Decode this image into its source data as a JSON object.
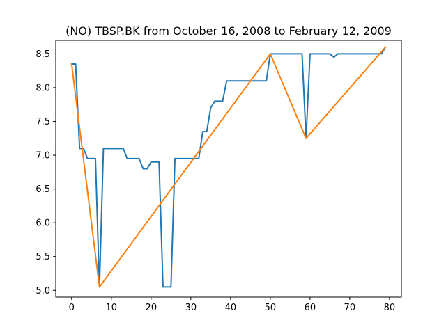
{
  "chart_data": {
    "type": "line",
    "title": "(NO) TBSP.BK from October 16, 2008 to February 12, 2009",
    "xlabel": "",
    "ylabel": "",
    "xlim": [
      -4,
      83
    ],
    "ylim": [
      4.9,
      8.7
    ],
    "xticks": [
      0,
      10,
      20,
      30,
      40,
      50,
      60,
      70,
      80
    ],
    "yticks": [
      5.0,
      5.5,
      6.0,
      6.5,
      7.0,
      7.5,
      8.0,
      8.5
    ],
    "ytick_labels": [
      "5.0",
      "5.5",
      "6.0",
      "6.5",
      "7.0",
      "7.5",
      "8.0",
      "8.5"
    ],
    "grid": false,
    "series": [
      {
        "color": "#1f77b4",
        "x": [
          0,
          1,
          2,
          3,
          4,
          5,
          6,
          7,
          8,
          9,
          10,
          11,
          12,
          13,
          14,
          15,
          16,
          17,
          18,
          19,
          20,
          21,
          22,
          23,
          24,
          25,
          26,
          27,
          28,
          29,
          30,
          31,
          32,
          33,
          34,
          35,
          36,
          37,
          38,
          39,
          40,
          41,
          42,
          43,
          44,
          45,
          46,
          47,
          48,
          49,
          50,
          51,
          52,
          53,
          54,
          55,
          56,
          57,
          58,
          59,
          60,
          61,
          62,
          63,
          64,
          65,
          66,
          67,
          68,
          69,
          70,
          71,
          72,
          73,
          74,
          75,
          76,
          77,
          78,
          79
        ],
        "y": [
          8.35,
          8.35,
          7.1,
          7.1,
          6.95,
          6.95,
          6.95,
          5.05,
          7.1,
          7.1,
          7.1,
          7.1,
          7.1,
          7.1,
          6.95,
          6.95,
          6.95,
          6.95,
          6.8,
          6.8,
          6.9,
          6.9,
          6.9,
          5.05,
          5.05,
          5.05,
          6.95,
          6.95,
          6.95,
          6.95,
          6.95,
          6.95,
          6.95,
          7.35,
          7.35,
          7.7,
          7.8,
          7.8,
          7.8,
          8.1,
          8.1,
          8.1,
          8.1,
          8.1,
          8.1,
          8.1,
          8.1,
          8.1,
          8.1,
          8.1,
          8.5,
          8.5,
          8.5,
          8.5,
          8.5,
          8.5,
          8.5,
          8.5,
          8.5,
          7.25,
          8.5,
          8.5,
          8.5,
          8.5,
          8.5,
          8.5,
          8.45,
          8.5,
          8.5,
          8.5,
          8.5,
          8.5,
          8.5,
          8.5,
          8.5,
          8.5,
          8.5,
          8.5,
          8.5,
          8.6
        ]
      },
      {
        "color": "#ff7f0e",
        "x": [
          0,
          7,
          50,
          59,
          79
        ],
        "y": [
          8.35,
          5.05,
          8.5,
          7.25,
          8.6
        ]
      }
    ]
  }
}
